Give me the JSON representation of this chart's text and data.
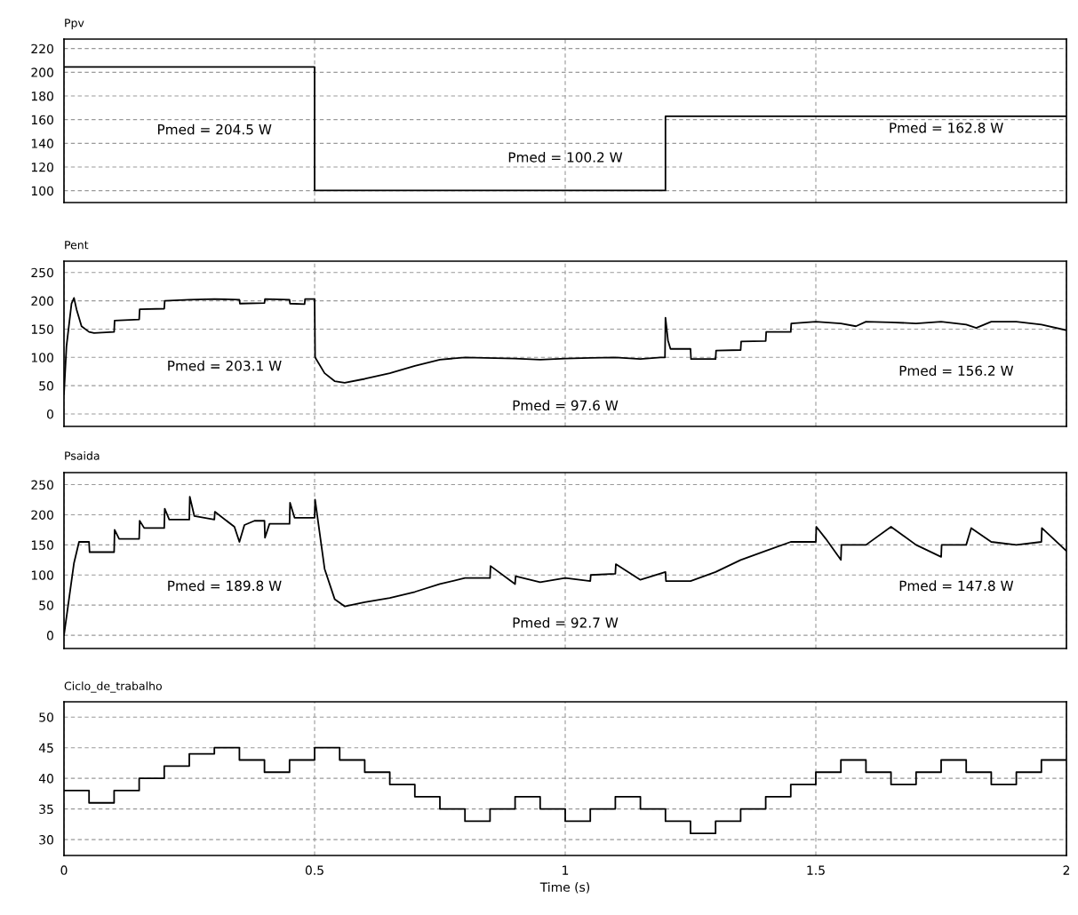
{
  "chart_data": [
    {
      "type": "step",
      "title": "Ppv",
      "xlim": [
        0,
        2
      ],
      "xticks": [
        0,
        0.5,
        1,
        1.5,
        2
      ],
      "ylim": [
        90,
        228
      ],
      "yticks": [
        100,
        120,
        140,
        160,
        180,
        200,
        220
      ],
      "grid": true,
      "tick_labels": "y",
      "legend": false,
      "series": [
        {
          "color": "#000000",
          "x": [
            0,
            0.5,
            1.2,
            2
          ],
          "values": [
            204.5,
            100.2,
            162.8,
            162.8
          ]
        }
      ],
      "annotations": [
        "Pmed = 204.5 W",
        "Pmed = 100.2 W",
        "Pmed = 162.8 W"
      ]
    },
    {
      "type": "line",
      "title": "Pent",
      "xlim": [
        0,
        2
      ],
      "xticks": [
        0,
        0.5,
        1,
        1.5,
        2
      ],
      "ylim": [
        -22,
        270
      ],
      "yticks": [
        0,
        50,
        100,
        150,
        200,
        250
      ],
      "grid": true,
      "tick_labels": "y",
      "legend": false,
      "series": [
        {
          "color": "#000000",
          "x": [
            0,
            0.005,
            0.015,
            0.02,
            0.025,
            0.035,
            0.05,
            0.06,
            0.1,
            0.101,
            0.15,
            0.151,
            0.2,
            0.201,
            0.25,
            0.3,
            0.35,
            0.351,
            0.4,
            0.401,
            0.45,
            0.451,
            0.48,
            0.481,
            0.5,
            0.501,
            0.52,
            0.54,
            0.56,
            0.6,
            0.65,
            0.7,
            0.75,
            0.8,
            0.9,
            0.95,
            1.0,
            1.05,
            1.1,
            1.15,
            1.19,
            1.199,
            1.2,
            1.205,
            1.21,
            1.25,
            1.251,
            1.3,
            1.301,
            1.35,
            1.351,
            1.4,
            1.401,
            1.45,
            1.451,
            1.5,
            1.55,
            1.58,
            1.6,
            1.65,
            1.7,
            1.75,
            1.8,
            1.82,
            1.85,
            1.9,
            1.95,
            2.0
          ],
          "values": [
            35,
            120,
            195,
            205,
            185,
            155,
            145,
            143,
            145,
            165,
            167,
            185,
            186,
            200,
            202,
            203,
            202,
            195,
            196,
            203,
            202,
            195,
            194,
            203,
            203,
            100,
            72,
            58,
            55,
            62,
            72,
            85,
            96,
            100,
            98,
            96,
            98,
            99,
            100,
            97,
            100,
            100,
            170,
            130,
            115,
            115,
            97,
            97,
            112,
            113,
            128,
            129,
            145,
            145,
            160,
            163,
            160,
            155,
            163,
            162,
            160,
            163,
            158,
            152,
            163,
            163,
            158,
            148
          ]
        }
      ],
      "annotations": [
        "Pmed = 203.1 W",
        "Pmed = 97.6 W",
        "Pmed = 156.2 W"
      ]
    },
    {
      "type": "line",
      "title": "Psaida",
      "xlim": [
        0,
        2
      ],
      "xticks": [
        0,
        0.5,
        1,
        1.5,
        2
      ],
      "ylim": [
        -22,
        270
      ],
      "yticks": [
        0,
        50,
        100,
        150,
        200,
        250
      ],
      "grid": true,
      "tick_labels": "y",
      "legend": false,
      "series": [
        {
          "color": "#000000",
          "x": [
            0,
            0.02,
            0.03,
            0.05,
            0.051,
            0.1,
            0.101,
            0.11,
            0.15,
            0.151,
            0.16,
            0.2,
            0.201,
            0.21,
            0.25,
            0.251,
            0.26,
            0.3,
            0.301,
            0.34,
            0.35,
            0.36,
            0.38,
            0.4,
            0.401,
            0.41,
            0.45,
            0.451,
            0.46,
            0.5,
            0.501,
            0.52,
            0.54,
            0.56,
            0.6,
            0.65,
            0.7,
            0.75,
            0.8,
            0.85,
            0.851,
            0.9,
            0.901,
            0.95,
            1.0,
            1.05,
            1.051,
            1.1,
            1.101,
            1.15,
            1.2,
            1.201,
            1.25,
            1.3,
            1.35,
            1.4,
            1.45,
            1.5,
            1.501,
            1.52,
            1.55,
            1.551,
            1.6,
            1.65,
            1.7,
            1.75,
            1.751,
            1.8,
            1.81,
            1.85,
            1.9,
            1.95,
            1.951,
            2.0
          ],
          "values": [
            0,
            120,
            155,
            155,
            138,
            138,
            175,
            160,
            160,
            190,
            178,
            178,
            210,
            192,
            192,
            230,
            198,
            192,
            205,
            180,
            155,
            183,
            190,
            190,
            162,
            185,
            185,
            220,
            195,
            195,
            225,
            110,
            60,
            48,
            55,
            62,
            72,
            85,
            95,
            95,
            115,
            85,
            98,
            88,
            95,
            90,
            100,
            102,
            118,
            92,
            105,
            90,
            90,
            105,
            125,
            140,
            155,
            155,
            180,
            160,
            125,
            150,
            150,
            180,
            150,
            130,
            150,
            150,
            178,
            155,
            150,
            155,
            178,
            140
          ]
        }
      ],
      "annotations": [
        "Pmed = 189.8 W",
        "Pmed = 92.7 W",
        "Pmed = 147.8 W"
      ]
    },
    {
      "type": "step",
      "title": "Ciclo_de_trabalho",
      "xlabel": "Time (s)",
      "xlim": [
        0,
        2
      ],
      "xticks": [
        0,
        0.5,
        1,
        1.5,
        2
      ],
      "ylim": [
        27.4,
        52.5
      ],
      "yticks": [
        30,
        35,
        40,
        45,
        50
      ],
      "grid": true,
      "legend": false,
      "series": [
        {
          "color": "#000000",
          "x": [
            0,
            0.05,
            0.1,
            0.15,
            0.2,
            0.25,
            0.3,
            0.35,
            0.4,
            0.45,
            0.5,
            0.55,
            0.6,
            0.65,
            0.7,
            0.75,
            0.8,
            0.85,
            0.9,
            0.95,
            1.0,
            1.05,
            1.1,
            1.15,
            1.2,
            1.25,
            1.3,
            1.35,
            1.4,
            1.45,
            1.5,
            1.55,
            1.6,
            1.65,
            1.7,
            1.75,
            1.8,
            1.85,
            1.9,
            1.95,
            2.0
          ],
          "values": [
            38,
            36,
            38,
            40,
            42,
            44,
            45,
            43,
            41,
            43,
            45,
            43,
            41,
            39,
            37,
            35,
            33,
            35,
            37,
            35,
            33,
            35,
            37,
            35,
            33,
            31,
            33,
            35,
            37,
            39,
            41,
            43,
            41,
            39,
            41,
            43,
            41,
            39,
            41,
            43,
            43
          ]
        }
      ]
    }
  ]
}
